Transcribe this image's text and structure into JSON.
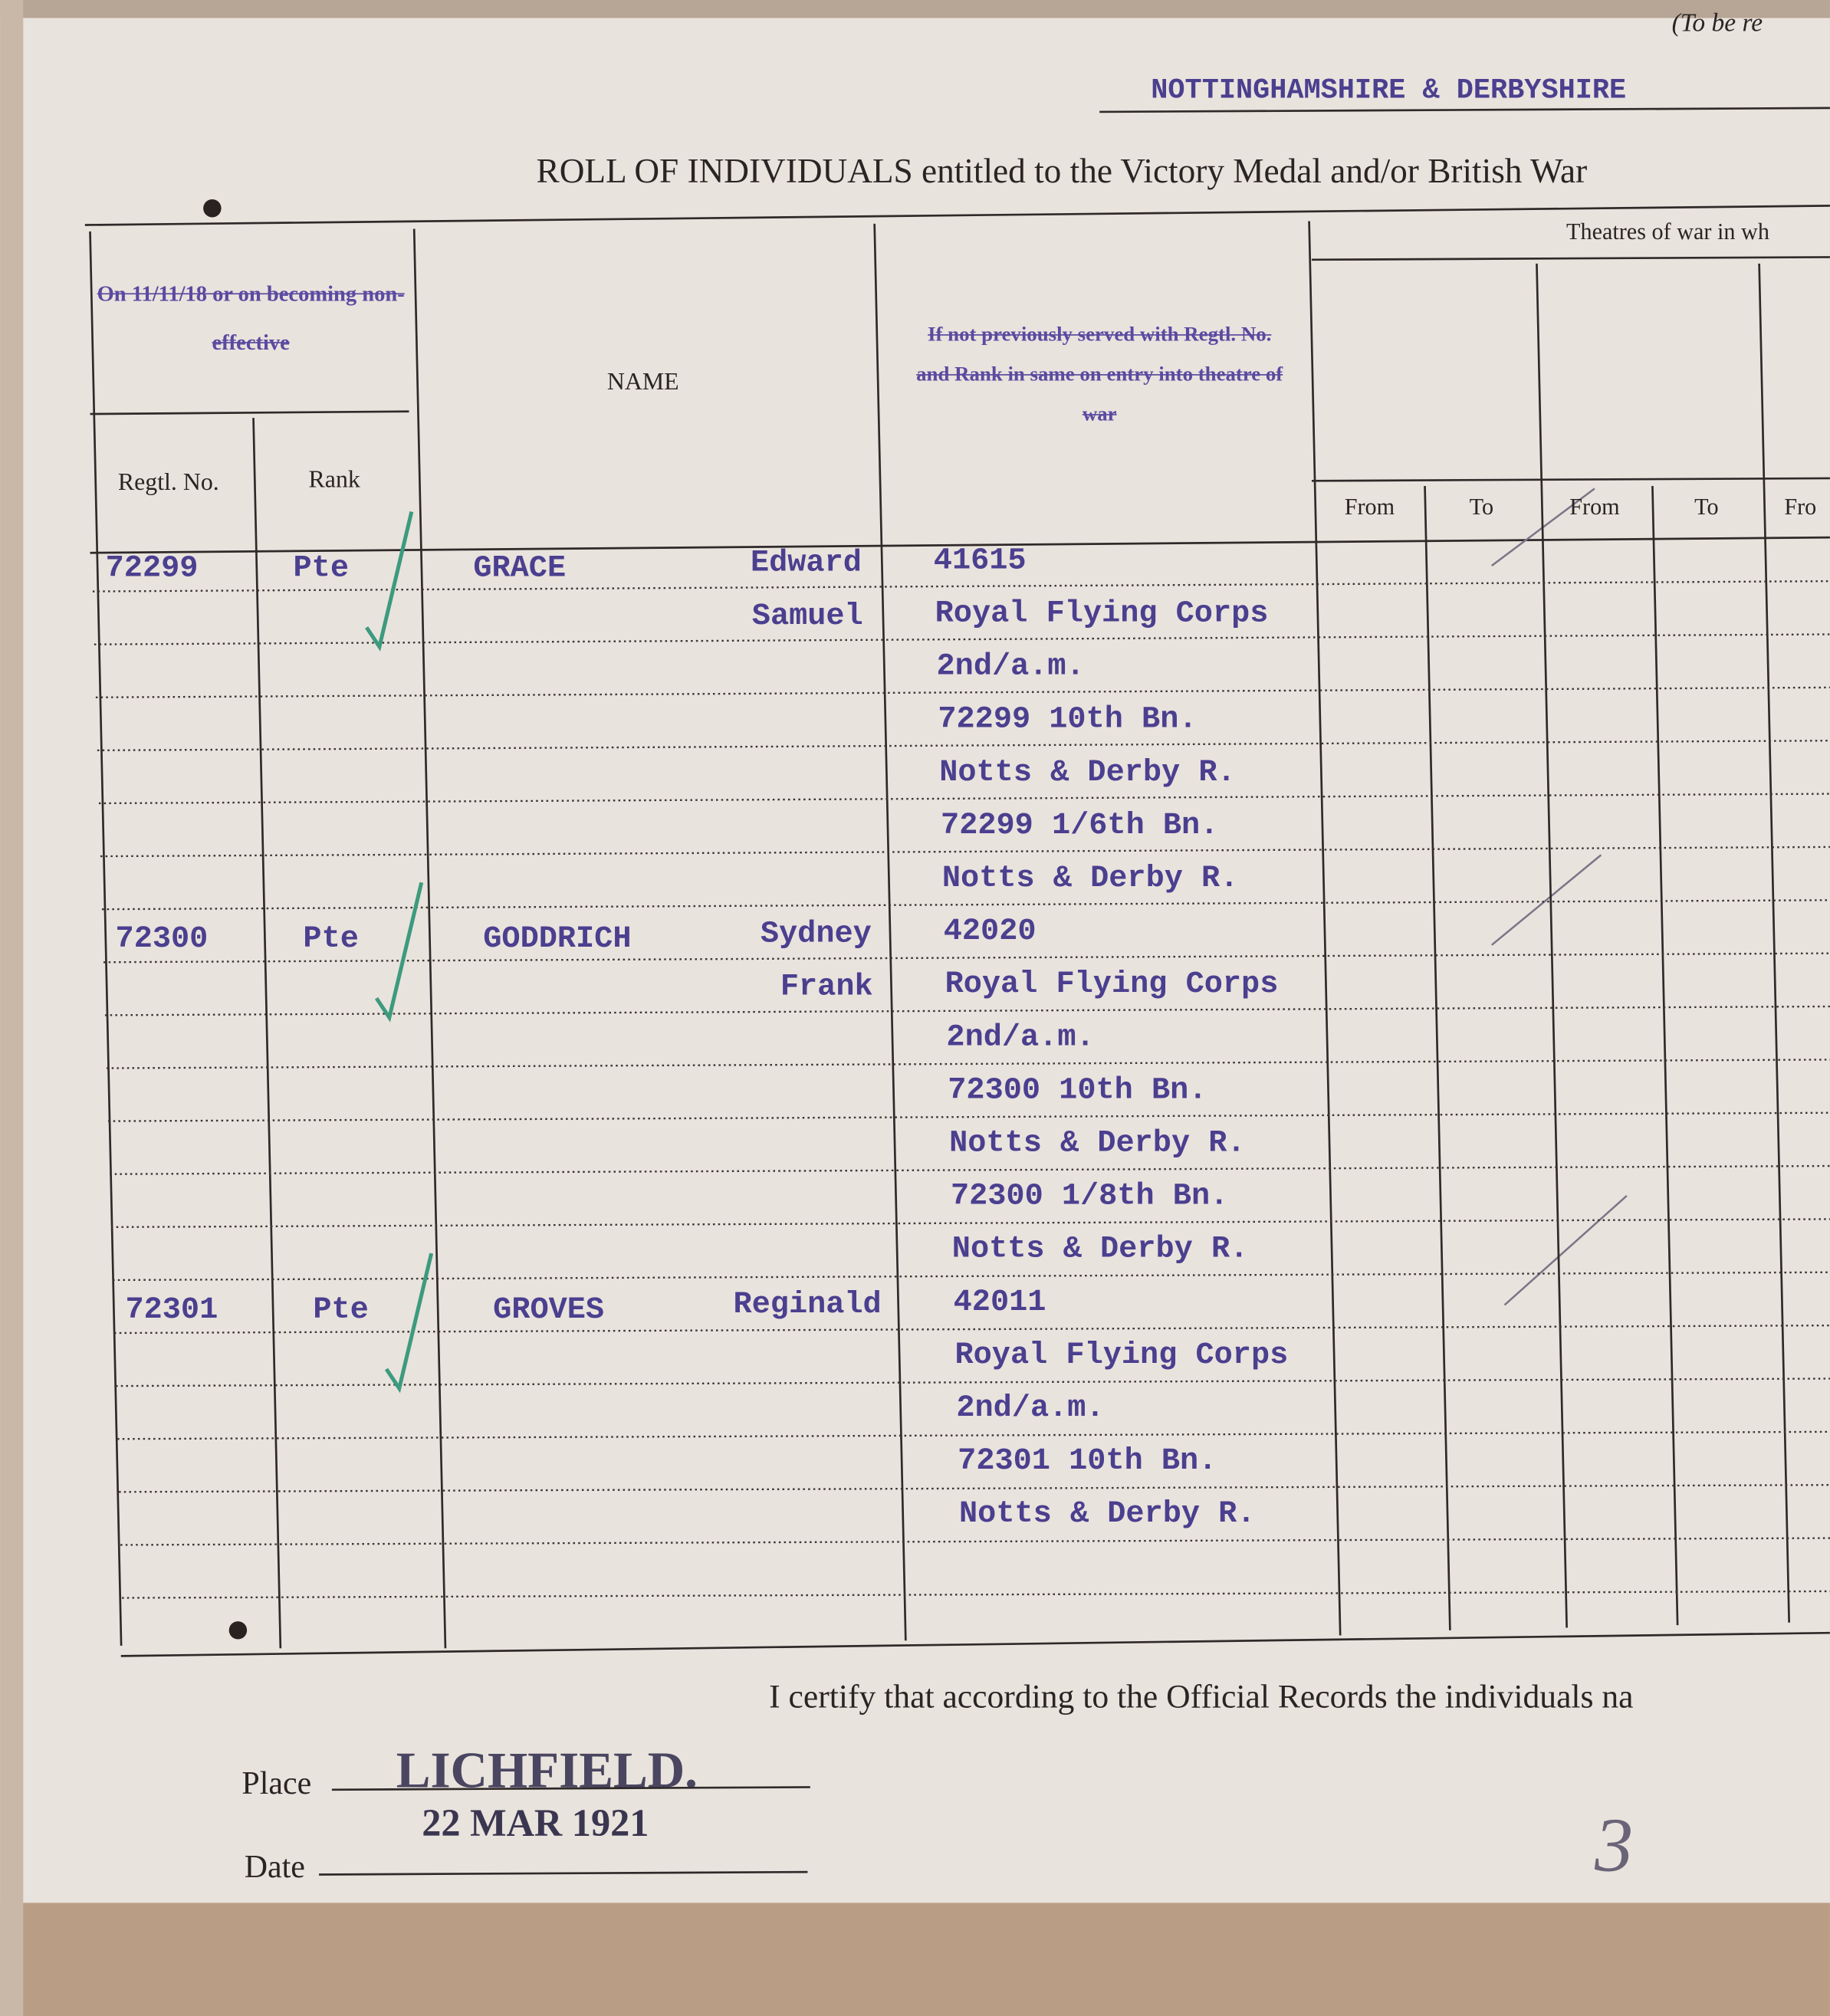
{
  "header": {
    "note": "(To be re",
    "regiment": "NOTTINGHAMSHIRE & DERBYSHIRE",
    "title": "ROLL OF INDIVIDUALS entitled to the Victory Medal and/or British War"
  },
  "columns": {
    "status_group": "On 11/11/18 or on becoming non-effective",
    "regtl_no": "Regtl. No.",
    "rank": "Rank",
    "name": "NAME",
    "previous": "If not previously served with Regtl. No. and Rank in same on entry into theatre of war",
    "theatres": "Theatres of war in wh",
    "theatre_columns": [
      "From",
      "To",
      "From",
      "To",
      "Fro"
    ]
  },
  "entries": [
    {
      "regtl_no": "72299",
      "rank": "Pte",
      "surname": "GRACE",
      "forenames": [
        "Edward",
        "Samuel"
      ],
      "remarks": [
        "41615",
        "Royal Flying Corps",
        "2nd/a.m.",
        "72299 10th Bn.",
        "Notts & Derby R.",
        "72299 1/6th Bn.",
        "Notts & Derby R."
      ]
    },
    {
      "regtl_no": "72300",
      "rank": "Pte",
      "surname": "GODDRICH",
      "forenames": [
        "Sydney",
        "Frank"
      ],
      "remarks": [
        "42020",
        "Royal Flying Corps",
        "2nd/a.m.",
        "72300 10th Bn.",
        "Notts & Derby R.",
        "72300 1/8th Bn.",
        "Notts & Derby R."
      ]
    },
    {
      "regtl_no": "72301",
      "rank": "Pte",
      "surname": "GROVES",
      "forenames": [
        "Reginald"
      ],
      "remarks": [
        "42011",
        "Royal Flying Corps",
        "2nd/a.m.",
        "72301 10th Bn.",
        "Notts & Derby R."
      ]
    }
  ],
  "footer": {
    "certify": "I certify that according to the Official Records the individuals na",
    "place_label": "Place",
    "place": "LICHFIELD.",
    "date_label": "Date",
    "date": "22 MAR 1921",
    "page_mark": "3"
  }
}
